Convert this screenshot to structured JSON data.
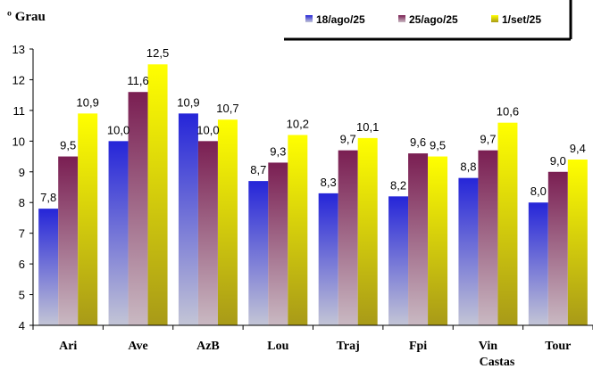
{
  "chart_data": {
    "type": "bar",
    "title": "",
    "ylabel": "º Grau",
    "xlabel": "",
    "ylim": [
      4,
      13
    ],
    "yticks": [
      "4",
      "5",
      "6",
      "7",
      "8",
      "9",
      "10",
      "11",
      "12",
      "13"
    ],
    "grid": false,
    "legend_position": "top-right",
    "categories": [
      "Ari",
      "Ave",
      "AzB",
      "Lou",
      "Traj",
      "Fpi",
      "Vin Castas",
      "Tour"
    ],
    "series": [
      {
        "name": "18/ago/25",
        "values": [
          7.8,
          10.0,
          10.9,
          8.7,
          8.3,
          8.2,
          8.8,
          8.0
        ],
        "labels": [
          "7,8",
          "10,0",
          "10,9",
          "8,7",
          "8,3",
          "8,2",
          "8,8",
          "8,0"
        ],
        "color": "#3b3fd0"
      },
      {
        "name": "25/ago/25",
        "values": [
          9.5,
          11.6,
          10.0,
          9.3,
          9.7,
          9.6,
          9.7,
          9.0
        ],
        "labels": [
          "9,5",
          "11,6",
          "10,0",
          "9,3",
          "9,7",
          "9,6",
          "9,7",
          "9,0"
        ],
        "color": "#8a2f62"
      },
      {
        "name": "1/set/25",
        "values": [
          10.9,
          12.5,
          10.7,
          10.2,
          10.1,
          9.5,
          10.6,
          9.4
        ],
        "labels": [
          "10,9",
          "12,5",
          "10,7",
          "10,2",
          "10,1",
          "9,5",
          "10,6",
          "9,4"
        ],
        "color": "#f2f200"
      }
    ]
  }
}
